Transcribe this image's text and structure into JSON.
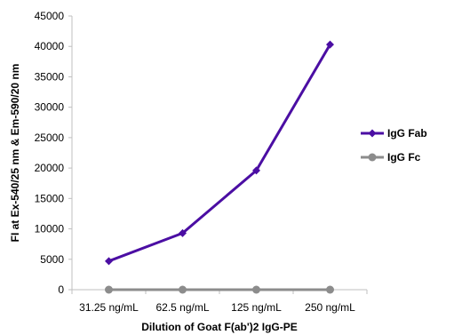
{
  "chart_data": {
    "type": "line",
    "categories": [
      "31.25 ng/mL",
      "62.5 ng/mL",
      "125 ng/mL",
      "250 ng/mL"
    ],
    "series": [
      {
        "name": "IgG Fab",
        "values": [
          4700,
          9300,
          19600,
          40300
        ],
        "color": "#4b0ea3",
        "marker": "diamond"
      },
      {
        "name": "IgG Fc",
        "values": [
          0,
          0,
          0,
          0
        ],
        "color": "#8c8c8c",
        "marker": "circle"
      }
    ],
    "xlabel": "Dilution of Goat F(ab')2 IgG-PE",
    "ylabel": "FI at Ex-540/25 nm & Em-590/20 nm",
    "ylim": [
      0,
      45000
    ],
    "yticks": [
      0,
      5000,
      10000,
      15000,
      20000,
      25000,
      30000,
      35000,
      40000,
      45000
    ],
    "yticklabels": [
      "0",
      "5000",
      "10000",
      "15000",
      "20000",
      "25000",
      "30000",
      "35000",
      "40000",
      "45000"
    ],
    "grid": false,
    "legend_position": "right"
  }
}
